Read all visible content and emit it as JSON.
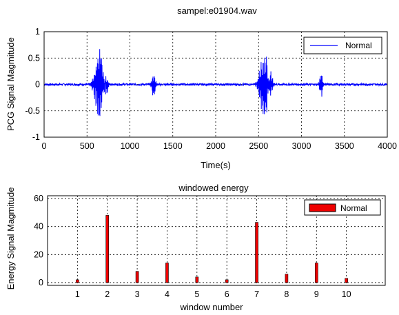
{
  "chart_data": [
    {
      "type": "line",
      "title": "sampel:e01904.wav",
      "xlabel": "Time(s)",
      "ylabel": "PCG Signal Magmitude",
      "xlim": [
        0,
        4000
      ],
      "ylim": [
        -1,
        1
      ],
      "xticks": [
        0,
        500,
        1000,
        1500,
        2000,
        2500,
        3000,
        3500,
        4000
      ],
      "yticks": [
        1,
        0.5,
        0,
        -0.5,
        -1
      ],
      "grid": true,
      "legend_position": "top-right",
      "color": "#0000ff",
      "series": [
        {
          "name": "Normal",
          "bursts": [
            {
              "center": 650,
              "width": 110,
              "amplitude": 0.85
            },
            {
              "center": 710,
              "width": 60,
              "amplitude": 0.55
            },
            {
              "center": 1278,
              "width": 40,
              "amplitude": 0.3
            },
            {
              "center": 2570,
              "width": 100,
              "amplitude": 0.8
            },
            {
              "center": 2630,
              "width": 60,
              "amplitude": 0.45
            },
            {
              "center": 3230,
              "width": 40,
              "amplitude": 0.28
            }
          ],
          "baseline_noise": 0.02
        }
      ]
    },
    {
      "type": "bar",
      "title": "windowed energy",
      "xlabel": "window number",
      "ylabel": "Energy Signal Magmitude",
      "categories": [
        "1",
        "2",
        "3",
        "4",
        "5",
        "6",
        "7",
        "8",
        "9",
        "10"
      ],
      "xlim": [
        0,
        11.3
      ],
      "ylim": [
        -2,
        62
      ],
      "yticks": [
        60,
        40,
        20,
        0
      ],
      "grid": true,
      "legend_position": "top-right",
      "color": "#ee0000",
      "series": [
        {
          "name": "Normal",
          "values": [
            2,
            48,
            8,
            14,
            4,
            2,
            43,
            6,
            14,
            3
          ]
        }
      ]
    }
  ]
}
